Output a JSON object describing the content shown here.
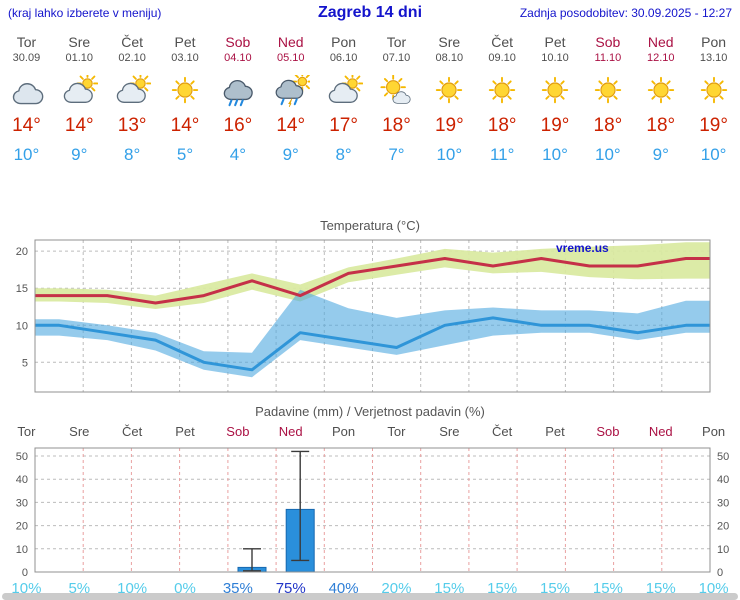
{
  "header": {
    "left_note": "(kraj lahko izberete v meniju)",
    "title": "Zagreb 14 dni",
    "updated": "Zadnja posodobitev: 30.09.2025 - 12:27"
  },
  "days": [
    {
      "name": "Tor",
      "date": "30.09",
      "icon": "cloudy",
      "high": "14°",
      "low": "10°",
      "weekend": false
    },
    {
      "name": "Sre",
      "date": "01.10",
      "icon": "partly-cloudy",
      "high": "14°",
      "low": "9°",
      "weekend": false
    },
    {
      "name": "Čet",
      "date": "02.10",
      "icon": "partly-cloudy",
      "high": "13°",
      "low": "8°",
      "weekend": false
    },
    {
      "name": "Pet",
      "date": "03.10",
      "icon": "sunny",
      "high": "14°",
      "low": "5°",
      "weekend": false
    },
    {
      "name": "Sob",
      "date": "04.10",
      "icon": "rain",
      "high": "16°",
      "low": "4°",
      "weekend": true
    },
    {
      "name": "Ned",
      "date": "05.10",
      "icon": "rain-sun",
      "high": "14°",
      "low": "9°",
      "weekend": true
    },
    {
      "name": "Pon",
      "date": "06.10",
      "icon": "partly-cloudy",
      "high": "17°",
      "low": "8°",
      "weekend": false
    },
    {
      "name": "Tor",
      "date": "07.10",
      "icon": "mostly-sunny",
      "high": "18°",
      "low": "7°",
      "weekend": false
    },
    {
      "name": "Sre",
      "date": "08.10",
      "icon": "sunny",
      "high": "19°",
      "low": "10°",
      "weekend": false
    },
    {
      "name": "Čet",
      "date": "09.10",
      "icon": "sunny",
      "high": "18°",
      "low": "11°",
      "weekend": false
    },
    {
      "name": "Pet",
      "date": "10.10",
      "icon": "sunny",
      "high": "19°",
      "low": "10°",
      "weekend": false
    },
    {
      "name": "Sob",
      "date": "11.10",
      "icon": "sunny",
      "high": "18°",
      "low": "10°",
      "weekend": true
    },
    {
      "name": "Ned",
      "date": "12.10",
      "icon": "sunny",
      "high": "18°",
      "low": "9°",
      "weekend": true
    },
    {
      "name": "Pon",
      "date": "13.10",
      "icon": "sunny",
      "high": "19°",
      "low": "10°",
      "weekend": false
    }
  ],
  "chart_data": [
    {
      "type": "line",
      "title": "Temperatura (°C)",
      "watermark": "vreme.us",
      "categories": [
        "Tor 30.09",
        "Sre 01.10",
        "Čet 02.10",
        "Pet 03.10",
        "Sob 04.10",
        "Ned 05.10",
        "Pon 06.10",
        "Tor 07.10",
        "Sre 08.10",
        "Čet 09.10",
        "Pet 10.10",
        "Sob 11.10",
        "Ned 12.10",
        "Pon 13.10"
      ],
      "series": [
        {
          "name": "temp_max",
          "values": [
            14,
            14,
            13,
            14,
            16,
            14,
            17,
            18,
            19,
            18,
            19,
            18,
            18,
            19
          ]
        },
        {
          "name": "temp_min",
          "values": [
            10,
            9,
            8,
            5,
            4,
            9,
            8,
            7,
            10,
            11,
            10,
            10,
            9,
            10
          ]
        },
        {
          "name": "max_range_upper",
          "values": [
            15,
            14.8,
            14,
            15.5,
            17,
            15.5,
            17.8,
            19,
            20.3,
            19.8,
            20.3,
            20.6,
            20.8,
            21.2
          ]
        },
        {
          "name": "max_range_lower",
          "values": [
            13.2,
            13,
            12.2,
            13,
            14.8,
            13.2,
            15.8,
            16.8,
            17.8,
            17,
            17.2,
            16.5,
            16.2,
            16.3
          ]
        },
        {
          "name": "min_range_upper",
          "values": [
            10.8,
            10,
            9,
            6.5,
            6.3,
            14.8,
            12.3,
            11,
            12,
            12.4,
            12,
            12,
            11.6,
            13.3
          ]
        },
        {
          "name": "min_range_lower",
          "values": [
            8.6,
            8,
            6.6,
            4,
            3,
            8,
            7,
            6,
            7.3,
            8.6,
            9,
            9,
            8,
            9
          ]
        }
      ],
      "ylim": [
        1,
        21.5
      ],
      "yticks": [
        5,
        10,
        15,
        20
      ],
      "grid": true,
      "legend": false
    },
    {
      "type": "bar",
      "title": "Padavine (mm) / Verjetnost padavin (%)",
      "categories": [
        "Tor",
        "Sre",
        "Čet",
        "Pet",
        "Sob",
        "Ned",
        "Pon",
        "Tor",
        "Sre",
        "Čet",
        "Pet",
        "Sob",
        "Ned",
        "Pon"
      ],
      "values": [
        0,
        0,
        0,
        0,
        2,
        27,
        0,
        0,
        0,
        0,
        0,
        0,
        0,
        0
      ],
      "whisker_max_mm": [
        0,
        0,
        0,
        0,
        10,
        52,
        0,
        0,
        0,
        0,
        0,
        0,
        0,
        0
      ],
      "whisker_min_mm": [
        0,
        0,
        0,
        0,
        0.5,
        5,
        0,
        0,
        0,
        0,
        0,
        0,
        0,
        0
      ],
      "probability_pct": [
        10,
        5,
        10,
        0,
        35,
        75,
        40,
        20,
        15,
        15,
        15,
        15,
        15,
        10
      ],
      "weekend_indices": [
        4,
        5,
        11,
        12
      ],
      "ylim": [
        0,
        53
      ],
      "yticks": [
        0,
        10,
        20,
        30,
        40,
        50
      ],
      "grid": true,
      "legend": false
    }
  ],
  "colors": {
    "header-blue": "#1414cc",
    "day-gray": "#4f4f4f",
    "weekend-red": "#aa1144",
    "high-red": "#cc2200",
    "low-blue": "#33a0e8",
    "band-warm": "#d9e9a0",
    "band-cool": "#4fa8e0",
    "line-max": "#c53048",
    "line-min": "#2f95d8",
    "bar-blue": "#2a8fdb",
    "bar-border": "#1668b0",
    "prob-low": "#55ccea",
    "prob-mid": "#2f7fd6",
    "prob-high": "#2236c8"
  }
}
